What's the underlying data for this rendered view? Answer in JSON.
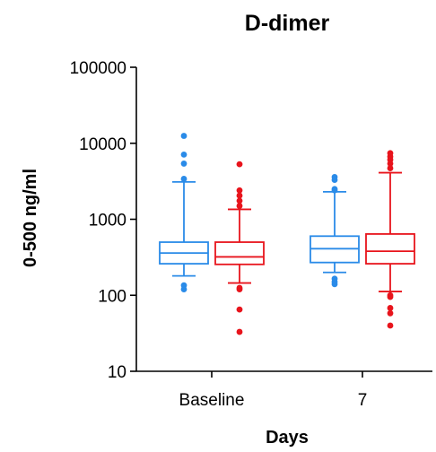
{
  "chart_data": {
    "type": "box",
    "title": "D-dimer",
    "xlabel": "Days",
    "ylabel": "0-500 ng/ml",
    "y_scale": "log",
    "ylim": [
      10,
      100000
    ],
    "y_ticks": [
      {
        "value": 10,
        "label": "10"
      },
      {
        "value": 100,
        "label": "100"
      },
      {
        "value": 1000,
        "label": "1000"
      },
      {
        "value": 10000,
        "label": "10000"
      },
      {
        "value": 100000,
        "label": "100000"
      }
    ],
    "categories": [
      "Baseline",
      "7"
    ],
    "colors": {
      "group_a": "#2a8be8",
      "group_b": "#e8141c"
    },
    "boxes": [
      {
        "category": "Baseline",
        "group": "group_a",
        "color": "#2a8be8",
        "whisker_low": 180,
        "q1": 260,
        "median": 360,
        "q3": 500,
        "whisker_high": 3100,
        "outliers": [
          12500,
          7100,
          5400,
          3400,
          135,
          120
        ]
      },
      {
        "category": "Baseline",
        "group": "group_b",
        "color": "#e8141c",
        "whisker_low": 145,
        "q1": 255,
        "median": 320,
        "q3": 500,
        "whisker_high": 1350,
        "outliers": [
          5300,
          2400,
          2050,
          1750,
          1500,
          125,
          120,
          65,
          33
        ]
      },
      {
        "category": "7",
        "group": "group_a",
        "color": "#2a8be8",
        "whisker_low": 200,
        "q1": 270,
        "median": 410,
        "q3": 600,
        "whisker_high": 2300,
        "outliers": [
          3600,
          3300,
          2500,
          2400,
          165,
          150,
          140
        ]
      },
      {
        "category": "7",
        "group": "group_b",
        "color": "#e8141c",
        "whisker_low": 112,
        "q1": 260,
        "median": 380,
        "q3": 640,
        "whisker_high": 4100,
        "outliers": [
          7400,
          6700,
          6100,
          5400,
          4700,
          100,
          95,
          68,
          58,
          40
        ]
      }
    ]
  }
}
